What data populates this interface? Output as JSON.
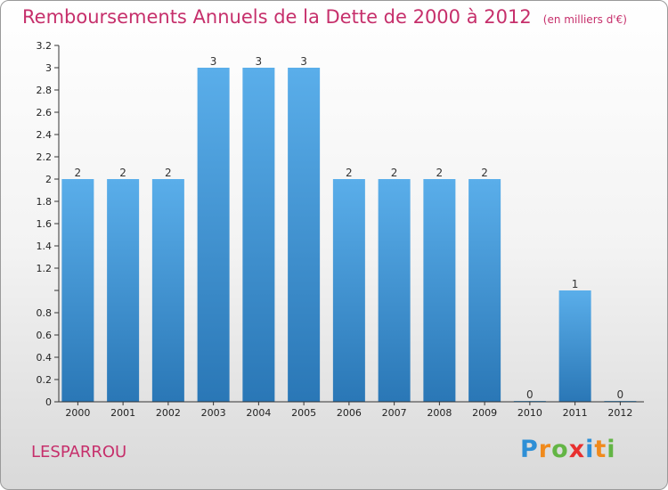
{
  "header": {
    "title": "Remboursements Annuels de la Dette de 2000 à 2012",
    "unit": "(en milliers d'€)"
  },
  "commune": "LESPARROU",
  "logo": {
    "text": "Proxiti",
    "letters": [
      {
        "char": "P",
        "color": "#2e8fd6"
      },
      {
        "char": "r",
        "color": "#f08a1c"
      },
      {
        "char": "o",
        "color": "#63b545"
      },
      {
        "char": "x",
        "color": "#e8302f"
      },
      {
        "char": "i",
        "color": "#2e8fd6"
      },
      {
        "char": "t",
        "color": "#f08a1c"
      },
      {
        "char": "i",
        "color": "#63b545"
      }
    ]
  },
  "colors": {
    "accent": "#c62f6b",
    "bar_light": "#5aaeea",
    "bar_dark": "#2a77b6"
  },
  "chart_data": {
    "type": "bar",
    "title": "Remboursements Annuels de la Dette de 2000 à 2012",
    "subtitle": "(en milliers d'€)",
    "categories": [
      "2000",
      "2001",
      "2002",
      "2003",
      "2004",
      "2005",
      "2006",
      "2007",
      "2008",
      "2009",
      "2010",
      "2011",
      "2012"
    ],
    "values": [
      2,
      2,
      2,
      3,
      3,
      3,
      2,
      2,
      2,
      2,
      0,
      1,
      0
    ],
    "data_labels": [
      "2",
      "2",
      "2",
      "3",
      "3",
      "3",
      "2",
      "2",
      "2",
      "2",
      "0",
      "1",
      "0"
    ],
    "ylim": [
      0,
      3.2
    ],
    "yticks": [
      "0",
      "0.2",
      "0.4",
      "0.6",
      "0.8",
      "",
      "1.2",
      "1.4",
      "1.6",
      "1.8",
      "2",
      "2.2",
      "2.4",
      "2.6",
      "2.8",
      "3",
      "3.2"
    ],
    "ytick_values": [
      0,
      0.2,
      0.4,
      0.6,
      0.8,
      1,
      1.2,
      1.4,
      1.6,
      1.8,
      2,
      2.2,
      2.4,
      2.6,
      2.8,
      3,
      3.2
    ],
    "grid": false,
    "legend": "none"
  }
}
